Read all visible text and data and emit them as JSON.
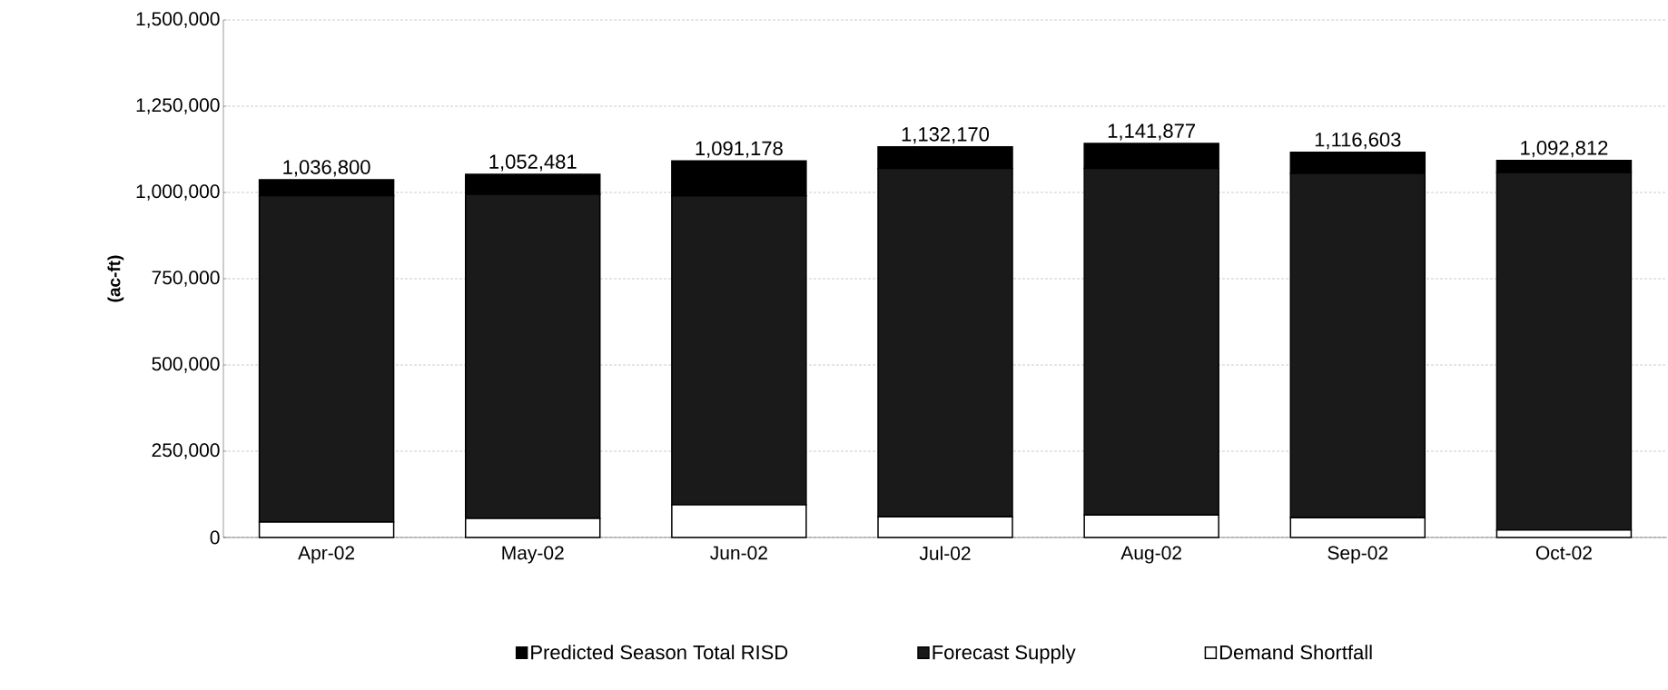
{
  "chart_data": {
    "type": "bar",
    "stacked": true,
    "ylabel": "(ac-ft)",
    "categories": [
      "Apr-02",
      "May-02",
      "Jun-02",
      "Jul-02",
      "Aug-02",
      "Sep-02",
      "Oct-02"
    ],
    "series": [
      {
        "name": "Demand Shortfall",
        "color": "#ffffff",
        "values": [
          45000,
          55000,
          95000,
          60000,
          65000,
          57000,
          22000
        ]
      },
      {
        "name": "Forecast Supply",
        "color": "#1a1a1a",
        "values": [
          946000,
          940000,
          895000,
          1010000,
          1005000,
          998000,
          1036000
        ]
      },
      {
        "name": "Predicted Season Total RISD",
        "color": "#000000",
        "values": [
          45800,
          57481,
          101178,
          62170,
          71877,
          61603,
          34812
        ]
      }
    ],
    "totals": [
      "1,036,800",
      "1,052,481",
      "1,091,178",
      "1,132,170",
      "1,141,877",
      "1,116,603",
      "1,092,812"
    ],
    "ylim": [
      0,
      1500000
    ],
    "yticks": [
      {
        "value": 0,
        "label": "0"
      },
      {
        "value": 250000,
        "label": "250,000"
      },
      {
        "value": 500000,
        "label": "500,000"
      },
      {
        "value": 750000,
        "label": "750,000"
      },
      {
        "value": 1000000,
        "label": "1,000,000"
      },
      {
        "value": 1250000,
        "label": "1,250,000"
      },
      {
        "value": 1500000,
        "label": "1,500,000"
      }
    ],
    "grid": "y",
    "legend": "bottom"
  }
}
